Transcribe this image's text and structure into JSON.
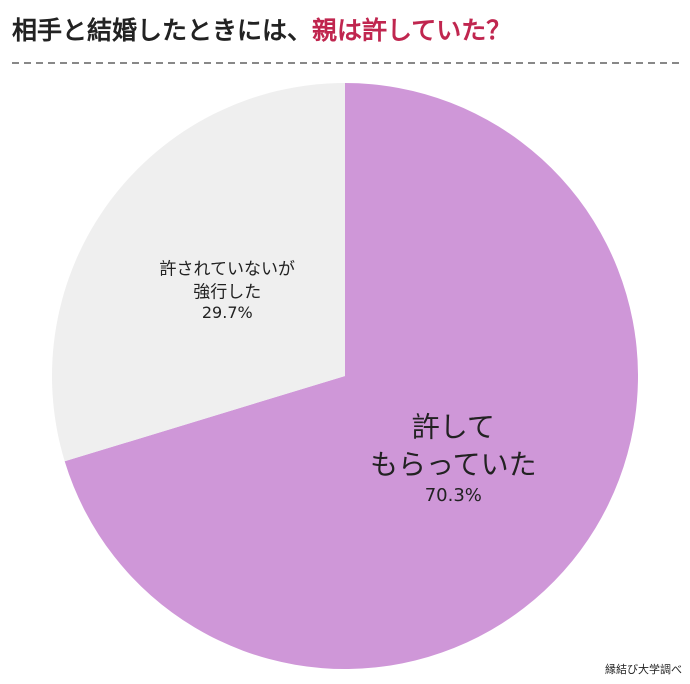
{
  "chart_data": {
    "type": "pie",
    "title_parts": [
      {
        "text": "相手と結婚したときには、",
        "color": "#222222"
      },
      {
        "text": "親は許していた？",
        "color": "#c0264f"
      }
    ],
    "categories": [
      [
        "許して",
        "もらっていた"
      ],
      [
        "許されていないが",
        "強行した"
      ]
    ],
    "values": [
      70.3,
      29.7
    ],
    "value_labels": [
      "70.3%",
      "29.7%"
    ],
    "colors": [
      "#cf97d8",
      "#efefef"
    ],
    "source": "縁結び大学調べ"
  }
}
